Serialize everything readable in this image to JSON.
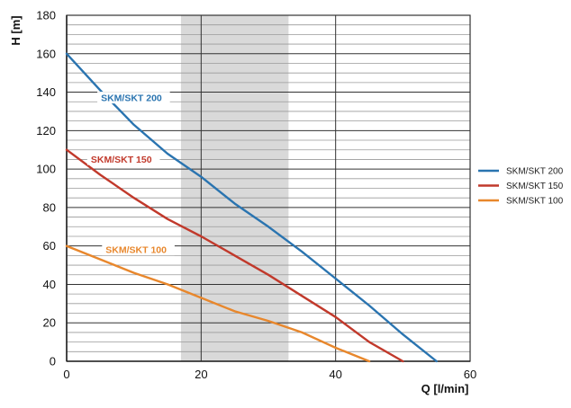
{
  "chart_data": {
    "type": "line",
    "title": "",
    "xlabel": "Q [l/min]",
    "ylabel": "H [m]",
    "xlim": [
      0,
      60
    ],
    "ylim": [
      0,
      180
    ],
    "x_major_ticks": [
      0,
      20,
      40,
      60
    ],
    "y_major_ticks": [
      0,
      20,
      40,
      60,
      80,
      100,
      120,
      140,
      160,
      180
    ],
    "y_minor_step": 5,
    "grid": true,
    "shaded_region": {
      "x_from": 17,
      "x_to": 33,
      "color": "#d9d9d9"
    },
    "legend_position": "right",
    "series": [
      {
        "name": "SKM/SKT 200",
        "color": "#2a74b0",
        "x": [
          0,
          5,
          10,
          15,
          20,
          25,
          30,
          35,
          40,
          45,
          50,
          55
        ],
        "y": [
          160,
          141,
          123,
          108,
          96,
          82,
          70,
          57,
          43,
          29,
          14,
          0
        ]
      },
      {
        "name": "SKM/SKT 150",
        "color": "#c1392b",
        "x": [
          0,
          5,
          10,
          15,
          20,
          25,
          30,
          35,
          40,
          45,
          50
        ],
        "y": [
          110,
          97,
          85,
          74,
          65,
          55,
          45,
          34,
          23,
          10,
          0
        ]
      },
      {
        "name": "SKM/SKT 100",
        "color": "#e8872c",
        "x": [
          0,
          5,
          10,
          15,
          20,
          25,
          30,
          35,
          40,
          45
        ],
        "y": [
          60,
          53,
          46,
          40,
          33,
          26,
          21,
          15,
          7,
          0
        ]
      }
    ],
    "annotations": [
      {
        "text": "SKM/SKT 200",
        "x": 5.1,
        "y": 136,
        "series": 0
      },
      {
        "text": "SKM/SKT 150",
        "x": 3.6,
        "y": 104,
        "series": 1
      },
      {
        "text": "SKM/SKT 100",
        "x": 5.8,
        "y": 57,
        "series": 2
      }
    ]
  }
}
